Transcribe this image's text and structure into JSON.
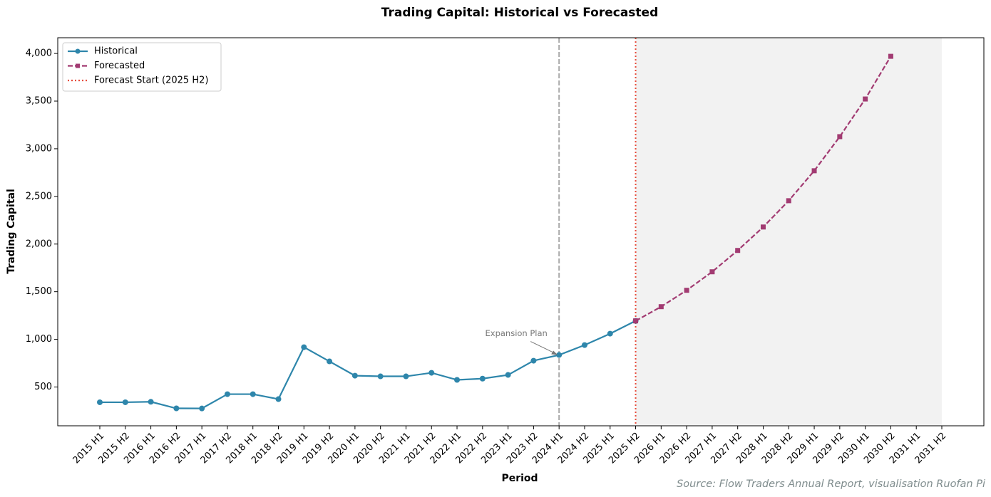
{
  "chart_data": {
    "type": "line",
    "title": "Trading Capital: Historical vs Forecasted",
    "x_label": "Period",
    "y_label": "Trading Capital",
    "source": "Source: Flow Traders Annual Report, visualisation Ruofan Pi",
    "categories": [
      "2015 H1",
      "2015 H2",
      "2016 H1",
      "2016 H2",
      "2017 H1",
      "2017 H2",
      "2018 H1",
      "2018 H2",
      "2019 H1",
      "2019 H2",
      "2020 H1",
      "2020 H2",
      "2021 H1",
      "2021 H2",
      "2022 H1",
      "2022 H2",
      "2023 H1",
      "2023 H2",
      "2024 H1",
      "2024 H2",
      "2025 H1",
      "2025 H2",
      "2026 H1",
      "2026 H2",
      "2027 H1",
      "2027 H2",
      "2028 H1",
      "2028 H2",
      "2029 H1",
      "2029 H2",
      "2030 H1",
      "2030 H2",
      "2031 H1",
      "2031 H2"
    ],
    "series": [
      {
        "name": "Historical",
        "color": "#2e86ab",
        "marker": "circle",
        "dash": "solid",
        "values": [
          340,
          340,
          345,
          276,
          275,
          425,
          425,
          373,
          918,
          769,
          619,
          612,
          612,
          649,
          575,
          588,
          627,
          776,
          836,
          940,
          1060,
          1194,
          null,
          null,
          null,
          null,
          null,
          null,
          null,
          null,
          null,
          null,
          null,
          null
        ]
      },
      {
        "name": "Forecasted",
        "color": "#a23b72",
        "marker": "square",
        "dash": "dashed",
        "values": [
          null,
          null,
          null,
          null,
          null,
          null,
          null,
          null,
          null,
          null,
          null,
          null,
          null,
          null,
          null,
          null,
          null,
          null,
          null,
          null,
          null,
          1194,
          1343,
          1515,
          1709,
          1933,
          2179,
          2455,
          2769,
          3127,
          3522,
          3970,
          null,
          null
        ]
      }
    ],
    "reference_lines": [
      {
        "x": "2024 H1",
        "color": "#aaaaaa",
        "dash": "dashed"
      },
      {
        "x": "2025 H2",
        "name": "Forecast Start (2025 H2)",
        "color": "#e74c3c",
        "dash": "dotted"
      }
    ],
    "shaded_region": {
      "from": "2025 H2",
      "to": "2031 H2",
      "color": "#f2f2f2"
    },
    "annotation": {
      "text": "Expansion Plan",
      "target": "2024 H1"
    },
    "ylim": [
      93,
      4165
    ],
    "yticks": [
      500,
      {
        "value": 1000,
        "label": "1,000"
      },
      {
        "value": 1500,
        "label": "1,500"
      },
      {
        "value": 2000,
        "label": "2,000"
      },
      {
        "value": 2500,
        "label": "2,500"
      },
      {
        "value": 3000,
        "label": "3,000"
      },
      {
        "value": 3500,
        "label": "3,500"
      },
      {
        "value": 4000,
        "label": "4,000"
      }
    ],
    "grid": false,
    "legend": "upper left"
  }
}
